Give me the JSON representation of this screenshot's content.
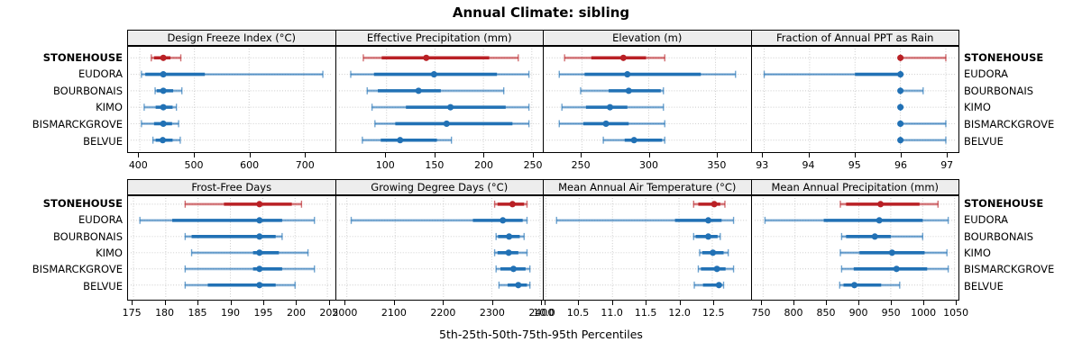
{
  "chart_data": {
    "type": "dotplot",
    "title": "Annual Climate: sibling",
    "caption": "5th-25th-50th-75th-95th Percentiles",
    "percentiles": [
      5,
      25,
      50,
      75,
      95
    ],
    "rows": [
      "STONEHOUSE",
      "EUDORA",
      "BOURBONAIS",
      "KIMO",
      "BISMARCKGROVE",
      "BELVUE"
    ],
    "highlight_row": "STONEHOUSE",
    "colors": {
      "highlight": "#b92025",
      "normal": "#2171b5",
      "header_bg": "#ededed",
      "grid": "#c9c9c9",
      "border": "#000000"
    },
    "layout": {
      "grid": "2 rows x 4 columns",
      "gridlines": "dotted",
      "legend": "none"
    },
    "panels": [
      {
        "title": "Design Freeze Index (°C)",
        "xlim": [
          380,
          754
        ],
        "tick_values": [
          400,
          500,
          600,
          700
        ],
        "tick_labels": [
          "400",
          "500",
          "600",
          "700"
        ],
        "values": {
          "STONEHOUSE": [
            421,
            426,
            443,
            456,
            475
          ],
          "EUDORA": [
            403,
            410,
            443,
            519,
            735
          ],
          "BOURBONAIS": [
            428,
            431,
            443,
            461,
            477
          ],
          "KIMO": [
            408,
            429,
            443,
            460,
            467
          ],
          "BISMARCKGROVE": [
            403,
            426,
            443,
            459,
            471
          ],
          "BELVUE": [
            424,
            429,
            442,
            460,
            474
          ]
        }
      },
      {
        "title": "Effective Precipitation (mm)",
        "xlim": [
          49,
          260
        ],
        "tick_values": [
          100,
          150,
          200,
          250
        ],
        "tick_labels": [
          "100",
          "150",
          "200",
          "250"
        ],
        "values": {
          "STONEHOUSE": [
            76,
            95,
            141,
            206,
            236
          ],
          "EUDORA": [
            63,
            87,
            149,
            214,
            247
          ],
          "BOURBONAIS": [
            80,
            91,
            133,
            156,
            221
          ],
          "KIMO": [
            85,
            120,
            166,
            223,
            247
          ],
          "BISMARCKGROVE": [
            88,
            109,
            162,
            230,
            247
          ],
          "BELVUE": [
            75,
            94,
            114,
            152,
            167
          ]
        }
      },
      {
        "title": "Elevation (m)",
        "xlim": [
          222,
          375
        ],
        "tick_values": [
          250,
          300,
          350
        ],
        "tick_labels": [
          "250",
          "300",
          "350"
        ],
        "values": {
          "STONEHOUSE": [
            237,
            257,
            281,
            298,
            312
          ],
          "EUDORA": [
            233,
            252,
            284,
            339,
            365
          ],
          "BOURBONAIS": [
            249,
            270,
            285,
            309,
            311
          ],
          "KIMO": [
            235,
            253,
            271,
            284,
            311
          ],
          "BISMARCKGROVE": [
            233,
            251,
            268,
            285,
            312
          ],
          "BELVUE": [
            266,
            282,
            289,
            310,
            312
          ]
        }
      },
      {
        "title": "Fraction of Annual PPT as Rain",
        "xlim": [
          92.75,
          97.25
        ],
        "tick_values": [
          93,
          94,
          95,
          96,
          97
        ],
        "tick_labels": [
          "93",
          "94",
          "95",
          "96",
          "97"
        ],
        "values": {
          "STONEHOUSE": [
            96,
            96,
            96,
            96,
            97
          ],
          "EUDORA": [
            93,
            95,
            96,
            96,
            96
          ],
          "BOURBONAIS": [
            96,
            96,
            96,
            96,
            96.5
          ],
          "KIMO": [
            96,
            96,
            96,
            96,
            96
          ],
          "BISMARCKGROVE": [
            96,
            96,
            96,
            96,
            97
          ],
          "BELVUE": [
            96,
            96,
            96,
            96,
            97
          ]
        }
      },
      {
        "title": "Frost-Free Days",
        "xlim": [
          174.3,
          205.9
        ],
        "tick_values": [
          175,
          180,
          185,
          190,
          195,
          200,
          205
        ],
        "tick_labels": [
          "175",
          "180",
          "185",
          "190",
          "195",
          "200",
          "205"
        ],
        "values": {
          "STONEHOUSE": [
            183,
            189,
            194.5,
            199.5,
            201
          ],
          "EUDORA": [
            176,
            181,
            194.5,
            198,
            203
          ],
          "BOURBONAIS": [
            183,
            184,
            194.5,
            197,
            198
          ],
          "KIMO": [
            184,
            193.5,
            194.5,
            197.5,
            202
          ],
          "BISMARCKGROVE": [
            183,
            193.5,
            194.5,
            198,
            203
          ],
          "BELVUE": [
            183,
            186.5,
            194.5,
            197,
            200
          ]
        }
      },
      {
        "title": "Growing Degree Days (°C)",
        "xlim": [
          1980,
          2403
        ],
        "tick_values": [
          2000,
          2100,
          2200,
          2300,
          2400
        ],
        "tick_labels": [
          "2000",
          "2100",
          "2200",
          "2300",
          "2400"
        ],
        "values": {
          "STONEHOUSE": [
            2306,
            2312,
            2343,
            2367,
            2373
          ],
          "EUDORA": [
            2009,
            2261,
            2323,
            2364,
            2373
          ],
          "BOURBONAIS": [
            2309,
            2313,
            2336,
            2358,
            2367
          ],
          "KIMO": [
            2306,
            2312,
            2335,
            2355,
            2373
          ],
          "BISMARCKGROVE": [
            2309,
            2318,
            2345,
            2370,
            2379
          ],
          "BELVUE": [
            2315,
            2333,
            2355,
            2373,
            2379
          ]
        }
      },
      {
        "title": "Mean Annual Air Temperature (°C)",
        "xlim": [
          9.98,
          13.05
        ],
        "tick_values": [
          10.0,
          10.5,
          11.0,
          11.5,
          12.0,
          12.5
        ],
        "tick_labels": [
          "10.0",
          "10.5",
          "11.0",
          "11.5",
          "12.0",
          "12.5"
        ],
        "values": {
          "STONEHOUSE": [
            12.22,
            12.29,
            12.53,
            12.62,
            12.69
          ],
          "EUDORA": [
            10.16,
            11.94,
            12.44,
            12.64,
            12.82
          ],
          "BOURBONAIS": [
            12.22,
            12.25,
            12.44,
            12.58,
            12.62
          ],
          "KIMO": [
            12.31,
            12.35,
            12.51,
            12.67,
            12.74
          ],
          "BISMARCKGROVE": [
            12.29,
            12.33,
            12.57,
            12.7,
            12.82
          ],
          "BELVUE": [
            12.23,
            12.36,
            12.6,
            12.64,
            12.67
          ]
        }
      },
      {
        "title": "Mean Annual Precipitation (mm)",
        "xlim": [
          734,
          1054
        ],
        "tick_values": [
          750,
          800,
          850,
          900,
          950,
          1000,
          1050
        ],
        "tick_labels": [
          "750",
          "800",
          "850",
          "900",
          "950",
          "1000",
          "1050"
        ],
        "values": {
          "STONEHOUSE": [
            871,
            880,
            934,
            995,
            1024
          ],
          "EUDORA": [
            753,
            845,
            932,
            1000,
            1040
          ],
          "BOURBONAIS": [
            873,
            880,
            925,
            950,
            1000
          ],
          "KIMO": [
            871,
            901,
            952,
            1003,
            1038
          ],
          "BISMARCKGROVE": [
            873,
            892,
            959,
            1007,
            1040
          ],
          "BELVUE": [
            870,
            876,
            893,
            935,
            964
          ]
        }
      }
    ]
  }
}
